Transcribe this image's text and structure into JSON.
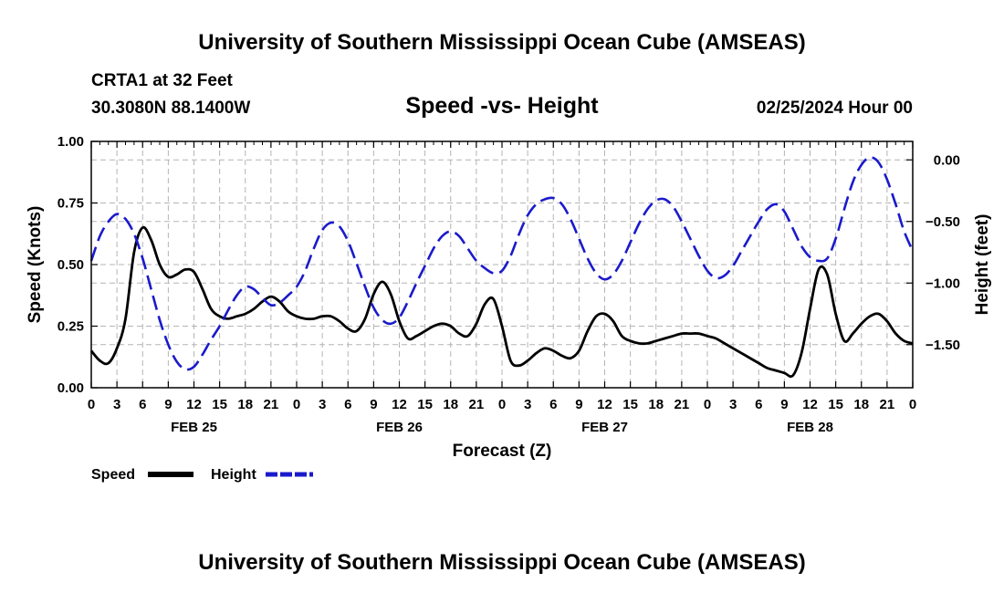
{
  "page_title": "University of Southern Mississippi Ocean Cube (AMSEAS)",
  "station": "CRTA1 at 32 Feet",
  "coordinates": "30.3080N  88.1400W",
  "datetime": "02/25/2024 Hour 00",
  "footer_title": "University of Southern Mississippi Ocean Cube (AMSEAS)",
  "colors": {
    "speed": "#000000",
    "height": "#1a1acc",
    "grid": "#b4b4b4"
  },
  "chart_data": {
    "type": "line",
    "title": "Speed -vs- Height",
    "xlabel": "Forecast (Z)",
    "ylabel": "Speed (Knots)",
    "y2label": "Height (feet)",
    "xlim": [
      0,
      96
    ],
    "ylim": [
      0,
      1
    ],
    "y2lim": [
      -1.85,
      0.15
    ],
    "x_tick_hours": [
      0,
      3,
      6,
      9,
      12,
      15,
      18,
      21,
      24,
      27,
      30,
      33,
      36,
      39,
      42,
      45,
      48,
      51,
      54,
      57,
      60,
      63,
      66,
      69,
      72,
      75,
      78,
      81,
      84,
      87,
      90,
      93,
      96
    ],
    "x_tick_labels": [
      "0",
      "3",
      "6",
      "9",
      "12",
      "15",
      "18",
      "21",
      "0",
      "3",
      "6",
      "9",
      "12",
      "15",
      "18",
      "21",
      "0",
      "3",
      "6",
      "9",
      "12",
      "15",
      "18",
      "21",
      "0",
      "3",
      "6",
      "9",
      "12",
      "15",
      "18",
      "21",
      "0"
    ],
    "date_labels": [
      {
        "hour": 12,
        "label": "FEB 25"
      },
      {
        "hour": 36,
        "label": "FEB 26"
      },
      {
        "hour": 60,
        "label": "FEB 27"
      },
      {
        "hour": 84,
        "label": "FEB 28"
      }
    ],
    "y_ticks": [
      {
        "value": 0,
        "label": "0.00"
      },
      {
        "value": 0.25,
        "label": "0.25"
      },
      {
        "value": 0.5,
        "label": "0.50"
      },
      {
        "value": 0.75,
        "label": "0.75"
      },
      {
        "value": 1,
        "label": "1.00"
      }
    ],
    "y2_ticks": [
      {
        "value": 0,
        "label": "0.00"
      },
      {
        "value": -0.5,
        "label": "−0.50"
      },
      {
        "value": -1,
        "label": "−1.00"
      },
      {
        "value": -1.5,
        "label": "−1.50"
      }
    ],
    "legend": [
      {
        "name": "Speed",
        "style": "solid"
      },
      {
        "name": "Height",
        "style": "dashed"
      }
    ],
    "series": [
      {
        "name": "Speed",
        "axis": "left",
        "x": [
          0,
          1,
          2,
          3,
          4,
          5,
          6,
          7,
          8,
          9,
          10,
          11,
          12,
          13,
          14,
          15,
          16,
          17,
          18,
          19,
          20,
          21,
          22,
          23,
          24,
          25,
          26,
          27,
          28,
          29,
          30,
          31,
          32,
          33,
          34,
          35,
          36,
          37,
          38,
          39,
          40,
          41,
          42,
          43,
          44,
          45,
          46,
          47,
          48,
          49,
          50,
          51,
          52,
          53,
          54,
          55,
          56,
          57,
          58,
          59,
          60,
          61,
          62,
          63,
          64,
          65,
          66,
          67,
          68,
          69,
          70,
          71,
          72,
          73,
          74,
          75,
          76,
          77,
          78,
          79,
          80,
          81,
          82,
          83,
          84,
          85,
          86,
          87,
          88,
          89,
          90,
          91,
          92,
          93,
          94,
          95,
          96
        ],
        "values": [
          0.15,
          0.11,
          0.1,
          0.16,
          0.28,
          0.55,
          0.65,
          0.6,
          0.5,
          0.45,
          0.46,
          0.48,
          0.47,
          0.4,
          0.32,
          0.29,
          0.28,
          0.29,
          0.3,
          0.32,
          0.35,
          0.37,
          0.35,
          0.31,
          0.29,
          0.28,
          0.28,
          0.29,
          0.29,
          0.27,
          0.24,
          0.23,
          0.28,
          0.38,
          0.43,
          0.38,
          0.27,
          0.2,
          0.21,
          0.23,
          0.25,
          0.26,
          0.25,
          0.22,
          0.21,
          0.26,
          0.34,
          0.36,
          0.25,
          0.11,
          0.09,
          0.11,
          0.14,
          0.16,
          0.15,
          0.13,
          0.12,
          0.15,
          0.23,
          0.29,
          0.3,
          0.27,
          0.21,
          0.19,
          0.18,
          0.18,
          0.19,
          0.2,
          0.21,
          0.22,
          0.22,
          0.22,
          0.21,
          0.2,
          0.18,
          0.16,
          0.14,
          0.12,
          0.1,
          0.08,
          0.07,
          0.06,
          0.05,
          0.14,
          0.32,
          0.48,
          0.46,
          0.3,
          0.19,
          0.22,
          0.26,
          0.29,
          0.3,
          0.27,
          0.22,
          0.19,
          0.18
        ]
      },
      {
        "name": "Height",
        "axis": "right",
        "x": [
          0,
          1,
          2,
          3,
          4,
          5,
          6,
          7,
          8,
          9,
          10,
          11,
          12,
          13,
          14,
          15,
          16,
          17,
          18,
          19,
          20,
          21,
          22,
          23,
          24,
          25,
          26,
          27,
          28,
          29,
          30,
          31,
          32,
          33,
          34,
          35,
          36,
          37,
          38,
          39,
          40,
          41,
          42,
          43,
          44,
          45,
          46,
          47,
          48,
          49,
          50,
          51,
          52,
          53,
          54,
          55,
          56,
          57,
          58,
          59,
          60,
          61,
          62,
          63,
          64,
          65,
          66,
          67,
          68,
          69,
          70,
          71,
          72,
          73,
          74,
          75,
          76,
          77,
          78,
          79,
          80,
          81,
          82,
          83,
          84,
          85,
          86,
          87,
          88,
          89,
          90,
          91,
          92,
          93,
          94,
          95,
          96
        ],
        "values": [
          -0.82,
          -0.62,
          -0.5,
          -0.44,
          -0.48,
          -0.6,
          -0.8,
          -1.05,
          -1.3,
          -1.5,
          -1.64,
          -1.7,
          -1.68,
          -1.58,
          -1.46,
          -1.35,
          -1.22,
          -1.1,
          -1.03,
          -1.05,
          -1.12,
          -1.18,
          -1.16,
          -1.1,
          -1.03,
          -0.9,
          -0.72,
          -0.57,
          -0.51,
          -0.54,
          -0.66,
          -0.84,
          -1.03,
          -1.2,
          -1.3,
          -1.33,
          -1.28,
          -1.15,
          -1.0,
          -0.86,
          -0.72,
          -0.62,
          -0.58,
          -0.62,
          -0.72,
          -0.82,
          -0.88,
          -0.92,
          -0.9,
          -0.78,
          -0.6,
          -0.45,
          -0.36,
          -0.32,
          -0.31,
          -0.36,
          -0.48,
          -0.64,
          -0.8,
          -0.92,
          -0.97,
          -0.93,
          -0.82,
          -0.67,
          -0.52,
          -0.4,
          -0.33,
          -0.32,
          -0.38,
          -0.5,
          -0.64,
          -0.78,
          -0.9,
          -0.96,
          -0.94,
          -0.86,
          -0.74,
          -0.62,
          -0.5,
          -0.4,
          -0.36,
          -0.42,
          -0.56,
          -0.7,
          -0.79,
          -0.82,
          -0.8,
          -0.64,
          -0.4,
          -0.18,
          -0.04,
          0.02,
          -0.02,
          -0.16,
          -0.36,
          -0.58,
          -0.74
        ]
      }
    ]
  }
}
